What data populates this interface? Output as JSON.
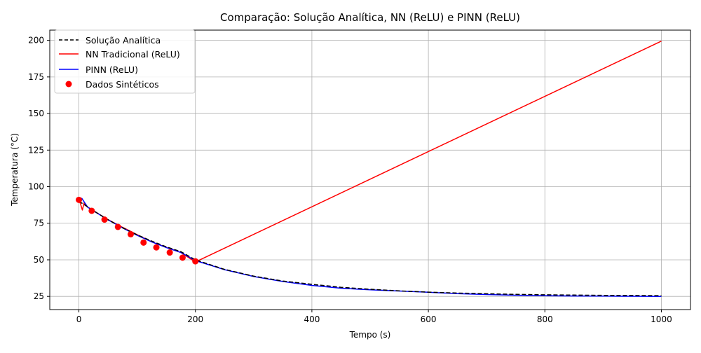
{
  "chart_data": {
    "type": "line",
    "title": "Comparação: Solução Analítica, NN (ReLU) e PINN (ReLU)",
    "xlabel": "Tempo (s)",
    "ylabel": "Temperatura (°C)",
    "xlim": [
      -50,
      1050
    ],
    "ylim": [
      16,
      207
    ],
    "xticks": [
      0,
      200,
      400,
      600,
      800,
      1000
    ],
    "yticks": [
      25,
      50,
      75,
      100,
      125,
      150,
      175,
      200
    ],
    "grid": true,
    "legend_position": "top-left",
    "series": [
      {
        "name": "Solução Analítica",
        "style": "dashed",
        "color": "#000000",
        "x": [
          0,
          10,
          25,
          50,
          75,
          100,
          125,
          150,
          175,
          200,
          250,
          300,
          350,
          400,
          450,
          500,
          550,
          600,
          650,
          700,
          750,
          800,
          850,
          900,
          950,
          1000
        ],
        "y": [
          90,
          87.5,
          83.6,
          77.4,
          71.9,
          67.1,
          62.8,
          58.9,
          55.6,
          50,
          43.5,
          38.9,
          35.5,
          33.3,
          31.2,
          29.9,
          28.8,
          27.9,
          27.3,
          26.8,
          26.4,
          26.1,
          25.9,
          25.7,
          25.6,
          25.5
        ]
      },
      {
        "name": "NN Tradicional (ReLU)",
        "style": "solid",
        "color": "#ff0000",
        "x": [
          0,
          3,
          6,
          9,
          12,
          15,
          20,
          25,
          50,
          75,
          100,
          125,
          150,
          175,
          200,
          1000
        ],
        "y": [
          91,
          88,
          84,
          89,
          87,
          86,
          85,
          83.5,
          77.5,
          72.2,
          67.2,
          62.3,
          58.5,
          55,
          48.5,
          199.5
        ]
      },
      {
        "name": "PINN (ReLU)",
        "style": "solid",
        "color": "#0000ff",
        "x": [
          0,
          5,
          10,
          15,
          25,
          50,
          75,
          100,
          125,
          150,
          175,
          200,
          250,
          300,
          350,
          400,
          450,
          500,
          550,
          600,
          650,
          700,
          750,
          800,
          850,
          900,
          950,
          1000
        ],
        "y": [
          90.5,
          92,
          89,
          86,
          83.5,
          77.3,
          71.8,
          66.8,
          62.3,
          58.4,
          55,
          49.5,
          43.3,
          38.6,
          35.2,
          32.5,
          30.6,
          29.5,
          28.7,
          27.8,
          26.9,
          26.3,
          25.8,
          25.5,
          25.3,
          25.2,
          25.1,
          25
        ]
      }
    ],
    "scatter": {
      "name": "Dados Sintéticos",
      "color": "#ff0000",
      "x": [
        0,
        22,
        44,
        67,
        89,
        111,
        133,
        156,
        178,
        200
      ],
      "y": [
        91,
        83.5,
        77.5,
        72.5,
        67.5,
        61.8,
        58.5,
        55,
        51.5,
        49
      ]
    }
  }
}
